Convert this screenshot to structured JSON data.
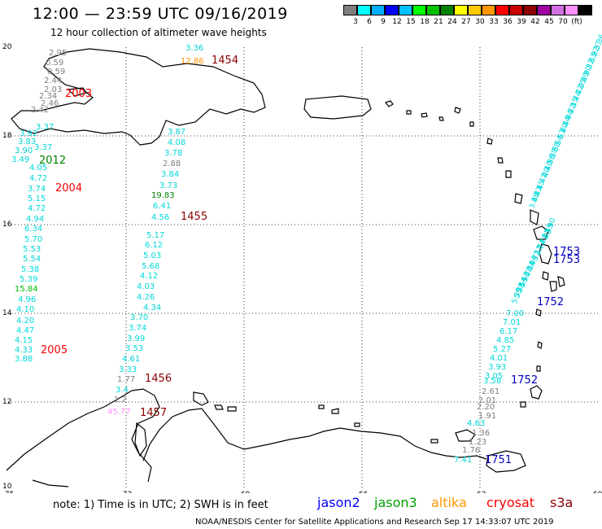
{
  "header": {
    "title": "12:00 — 23:59 UTC 09/16/2019",
    "subtitle": "12 hour collection of altimeter wave heights"
  },
  "colorbar": {
    "colors": [
      "#7f7f7f",
      "#00ffff",
      "#00b0ff",
      "#0000ff",
      "#00c0ff",
      "#00ff00",
      "#00c000",
      "#008000",
      "#ffff00",
      "#ffc800",
      "#ff9600",
      "#ff0000",
      "#c80000",
      "#8b0000",
      "#a000a0",
      "#d070e0",
      "#ff90ff",
      "#000000"
    ],
    "labels": [
      "3",
      "6",
      "9",
      "12",
      "15",
      "18",
      "21",
      "24",
      "27",
      "30",
      "33",
      "36",
      "39",
      "42",
      "45",
      "70",
      "(ft)"
    ]
  },
  "map": {
    "lon_ticks": [
      "-75",
      "-72",
      "-69",
      "-66",
      "-63",
      "-60"
    ],
    "lat_ticks": [
      "20",
      "18",
      "16",
      "14",
      "12",
      "10"
    ],
    "pass_labels": [
      {
        "text": "1454",
        "color": "#8b0000"
      },
      {
        "text": "2003",
        "color": "#ff0000"
      },
      {
        "text": "2012",
        "color": "#008000"
      },
      {
        "text": "2004",
        "color": "#ff0000"
      },
      {
        "text": "1455",
        "color": "#8b0000"
      },
      {
        "text": "2005",
        "color": "#ff0000"
      },
      {
        "text": "1456",
        "color": "#8b0000"
      },
      {
        "text": "1457",
        "color": "#8b0000"
      },
      {
        "text": "1753",
        "color": "#0000c0"
      },
      {
        "text": "1753",
        "color": "#0000c0"
      },
      {
        "text": "1752",
        "color": "#0000c0"
      },
      {
        "text": "1752",
        "color": "#0000c0"
      },
      {
        "text": "1751",
        "color": "#0000c0"
      }
    ],
    "values": [
      {
        "t": "3.36",
        "c": "#00d8d8"
      },
      {
        "t": "12.86",
        "c": "#ff9600"
      },
      {
        "t": "2.95",
        "c": "#7f7f7f"
      },
      {
        "t": "0.59",
        "c": "#7f7f7f"
      },
      {
        "t": "0.59",
        "c": "#7f7f7f"
      },
      {
        "t": "2.44",
        "c": "#7f7f7f"
      },
      {
        "t": "2.03",
        "c": "#7f7f7f"
      },
      {
        "t": "2.34",
        "c": "#7f7f7f"
      },
      {
        "t": "2.46",
        "c": "#7f7f7f"
      },
      {
        "t": "2.42",
        "c": "#7f7f7f"
      },
      {
        "t": "3.37",
        "c": "#00d8d8"
      },
      {
        "t": "3.92",
        "c": "#00d8d8"
      },
      {
        "t": "3.83",
        "c": "#00d8d8"
      },
      {
        "t": "3.37",
        "c": "#00d8d8"
      },
      {
        "t": "3.90",
        "c": "#00d8d8"
      },
      {
        "t": "3.49",
        "c": "#00d8d8"
      },
      {
        "t": "4.05",
        "c": "#00d8d8"
      },
      {
        "t": "4.72",
        "c": "#00d8d8"
      },
      {
        "t": "3.74",
        "c": "#00d8d8"
      },
      {
        "t": "5.15",
        "c": "#00d8d8"
      },
      {
        "t": "4.72",
        "c": "#00d8d8"
      },
      {
        "t": "4.94",
        "c": "#00d8d8"
      },
      {
        "t": "6.34",
        "c": "#00d8d8"
      },
      {
        "t": "5.70",
        "c": "#00d8d8"
      },
      {
        "t": "5.53",
        "c": "#00d8d8"
      },
      {
        "t": "5.54",
        "c": "#00d8d8"
      },
      {
        "t": "5.38",
        "c": "#00d8d8"
      },
      {
        "t": "5.39",
        "c": "#00d8d8"
      },
      {
        "t": "15.84",
        "c": "#00c000"
      },
      {
        "t": "4.96",
        "c": "#00d8d8"
      },
      {
        "t": "4.10",
        "c": "#00d8d8"
      },
      {
        "t": "4.20",
        "c": "#00d8d8"
      },
      {
        "t": "4.47",
        "c": "#00d8d8"
      },
      {
        "t": "4.15",
        "c": "#00d8d8"
      },
      {
        "t": "4.33",
        "c": "#00d8d8"
      },
      {
        "t": "3.88",
        "c": "#00d8d8"
      },
      {
        "t": "3.87",
        "c": "#00d8d8"
      },
      {
        "t": "4.08",
        "c": "#00d8d8"
      },
      {
        "t": "3.78",
        "c": "#00d8d8"
      },
      {
        "t": "2.88",
        "c": "#7f7f7f"
      },
      {
        "t": "3.84",
        "c": "#00d8d8"
      },
      {
        "t": "3.73",
        "c": "#00d8d8"
      },
      {
        "t": "19.83",
        "c": "#008000"
      },
      {
        "t": "6.41",
        "c": "#00d8d8"
      },
      {
        "t": "4.56",
        "c": "#00d8d8"
      },
      {
        "t": "5.17",
        "c": "#00d8d8"
      },
      {
        "t": "6.12",
        "c": "#00d8d8"
      },
      {
        "t": "5.03",
        "c": "#00d8d8"
      },
      {
        "t": "5.68",
        "c": "#00d8d8"
      },
      {
        "t": "4.12",
        "c": "#00d8d8"
      },
      {
        "t": "4.03",
        "c": "#00d8d8"
      },
      {
        "t": "4.26",
        "c": "#00d8d8"
      },
      {
        "t": "4.34",
        "c": "#00d8d8"
      },
      {
        "t": "3.70",
        "c": "#00d8d8"
      },
      {
        "t": "3.74",
        "c": "#00d8d8"
      },
      {
        "t": "3.99",
        "c": "#00d8d8"
      },
      {
        "t": "3.53",
        "c": "#00d8d8"
      },
      {
        "t": "4.61",
        "c": "#00d8d8"
      },
      {
        "t": "3.33",
        "c": "#00d8d8"
      },
      {
        "t": "1.77",
        "c": "#7f7f7f"
      },
      {
        "t": "3.4",
        "c": "#00d8d8"
      },
      {
        "t": "1.2",
        "c": "#7f7f7f"
      },
      {
        "t": "45.77",
        "c": "#ff90ff"
      },
      {
        "t": "7.00",
        "c": "#00d8d8"
      },
      {
        "t": "7.01",
        "c": "#00d8d8"
      },
      {
        "t": "6.17",
        "c": "#00d8d8"
      },
      {
        "t": "4.85",
        "c": "#00d8d8"
      },
      {
        "t": "5.27",
        "c": "#00d8d8"
      },
      {
        "t": "4.01",
        "c": "#00d8d8"
      },
      {
        "t": "3.93",
        "c": "#00d8d8"
      },
      {
        "t": "3.05",
        "c": "#00d8d8"
      },
      {
        "t": "3.58",
        "c": "#00d8d8"
      },
      {
        "t": "2.61",
        "c": "#7f7f7f"
      },
      {
        "t": "2.01",
        "c": "#7f7f7f"
      },
      {
        "t": "2.20",
        "c": "#7f7f7f"
      },
      {
        "t": "1.91",
        "c": "#7f7f7f"
      },
      {
        "t": "4.63",
        "c": "#00d8d8"
      },
      {
        "t": "1.36",
        "c": "#7f7f7f"
      },
      {
        "t": "1.23",
        "c": "#7f7f7f"
      },
      {
        "t": "1.76",
        "c": "#7f7f7f"
      },
      {
        "t": "7.41",
        "c": "#00d8d8"
      }
    ]
  },
  "footer": {
    "note": "note:  1) Time is in UTC;  2) SWH is in feet",
    "legend": [
      {
        "name": "jason2",
        "color": "#0000ff"
      },
      {
        "name": "jason3",
        "color": "#00a000"
      },
      {
        "name": "altika",
        "color": "#ff9600"
      },
      {
        "name": "cryosat",
        "color": "#ff0000"
      },
      {
        "name": "s3a",
        "color": "#8b0000"
      }
    ],
    "credit": "NOAA/NESDIS Center for Satellite Applications and Research    Sep 17 14:33:07 UTC 2019"
  }
}
